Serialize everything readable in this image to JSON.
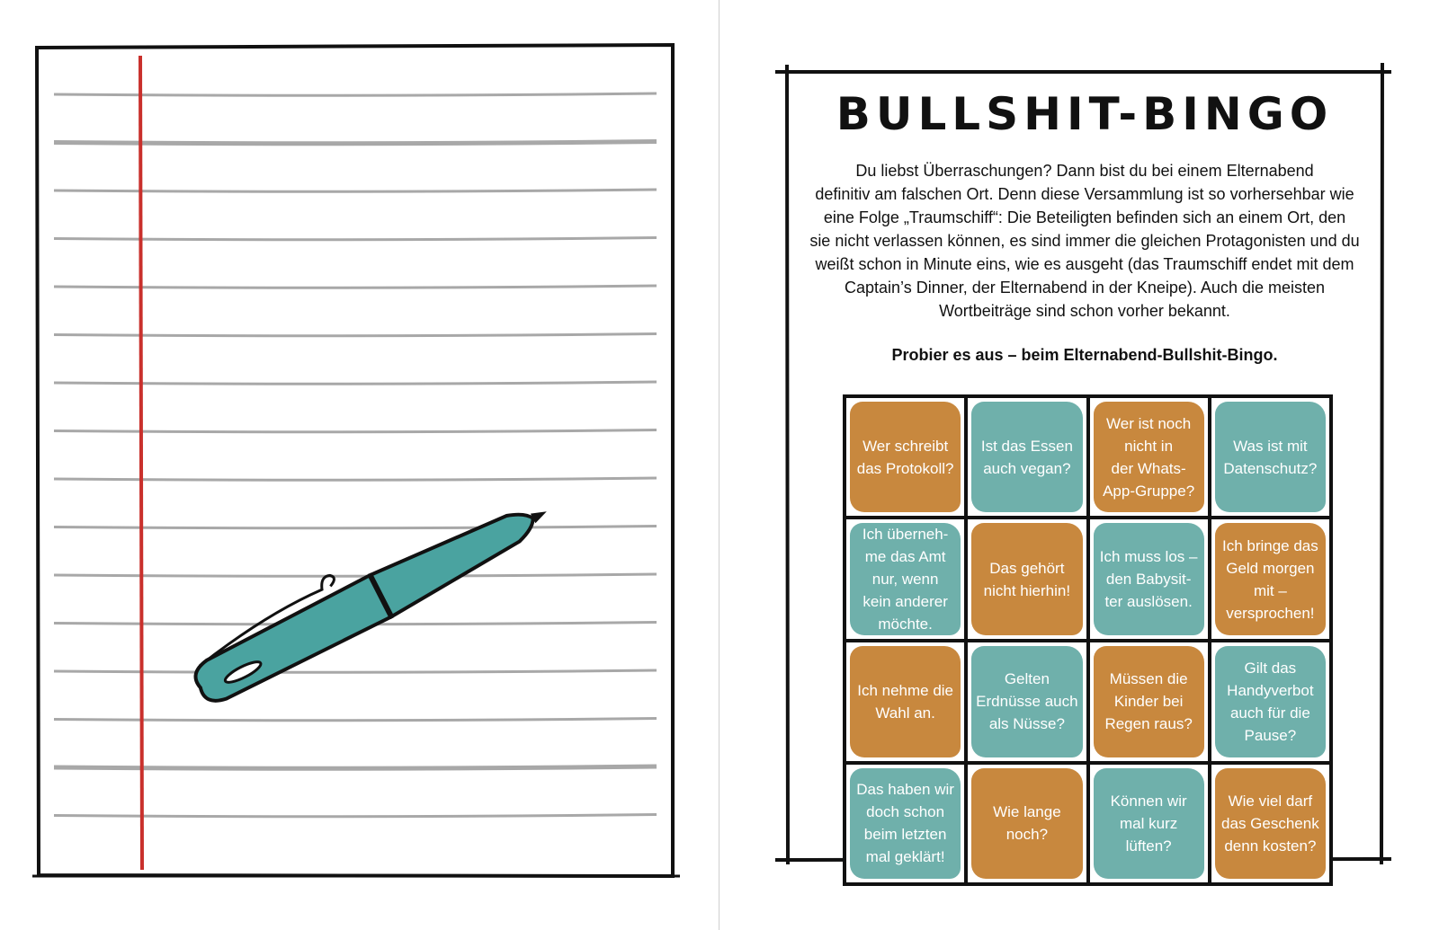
{
  "right_page": {
    "title": "BULLSHIT-BINGO",
    "intro_lines": [
      "Du liebst Überraschungen? Dann bist du bei einem Elternabend",
      "definitiv am falschen Ort. Denn diese Versammlung ist so vorhersehbar wie",
      "eine Folge „Traumschiff“: Die Beteiligten befinden sich an einem Ort, den",
      "sie nicht verlassen können, es sind immer die gleichen Protagonisten und du",
      "weißt schon in Minute eins, wie es ausgeht (das Traumschiff endet mit dem",
      "Captain’s Dinner, der Elternabend in der Kneipe). Auch die meisten",
      "Wortbeiträge sind schon vorher bekannt."
    ],
    "call_to_action": "Probier es aus – beim Elternabend-Bullshit-Bingo.",
    "colors": {
      "orange": "#c8883e",
      "teal": "#6fb0ab"
    },
    "bingo_cells": [
      {
        "text": "Wer schreibt\ndas Protokoll?",
        "color": "orange"
      },
      {
        "text": "Ist das Essen\nauch vegan?",
        "color": "teal"
      },
      {
        "text": "Wer ist noch\nnicht in\nder Whats-\nApp-Gruppe?",
        "color": "orange"
      },
      {
        "text": "Was ist mit\nDatenschutz?",
        "color": "teal"
      },
      {
        "text": "Ich überneh-\nme das Amt\nnur, wenn\nkein anderer\nmöchte.",
        "color": "teal"
      },
      {
        "text": "Das gehört\nnicht hierhin!",
        "color": "orange"
      },
      {
        "text": "Ich muss los –\nden Babysit-\nter auslösen.",
        "color": "teal"
      },
      {
        "text": "Ich bringe das\nGeld morgen\nmit –\nversprochen!",
        "color": "orange"
      },
      {
        "text": "Ich nehme die\nWahl an.",
        "color": "orange"
      },
      {
        "text": "Gelten\nErdnüsse auch\nals Nüsse?",
        "color": "teal"
      },
      {
        "text": "Müssen die\nKinder bei\nRegen raus?",
        "color": "orange"
      },
      {
        "text": "Gilt das\nHandyverbot\nauch für die\nPause?",
        "color": "teal"
      },
      {
        "text": "Das haben wir\ndoch schon\nbeim letzten\nmal geklärt!",
        "color": "teal"
      },
      {
        "text": "Wie lange\nnoch?",
        "color": "orange"
      },
      {
        "text": "Können wir\nmal kurz\nlüften?",
        "color": "teal"
      },
      {
        "text": "Wie viel darf\ndas Geschenk\ndenn kosten?",
        "color": "orange"
      }
    ]
  },
  "left_page": {
    "pen_color": "#4aa3a0",
    "margin_line_color": "#c9302c",
    "rule_color": "#a8a8a8"
  }
}
